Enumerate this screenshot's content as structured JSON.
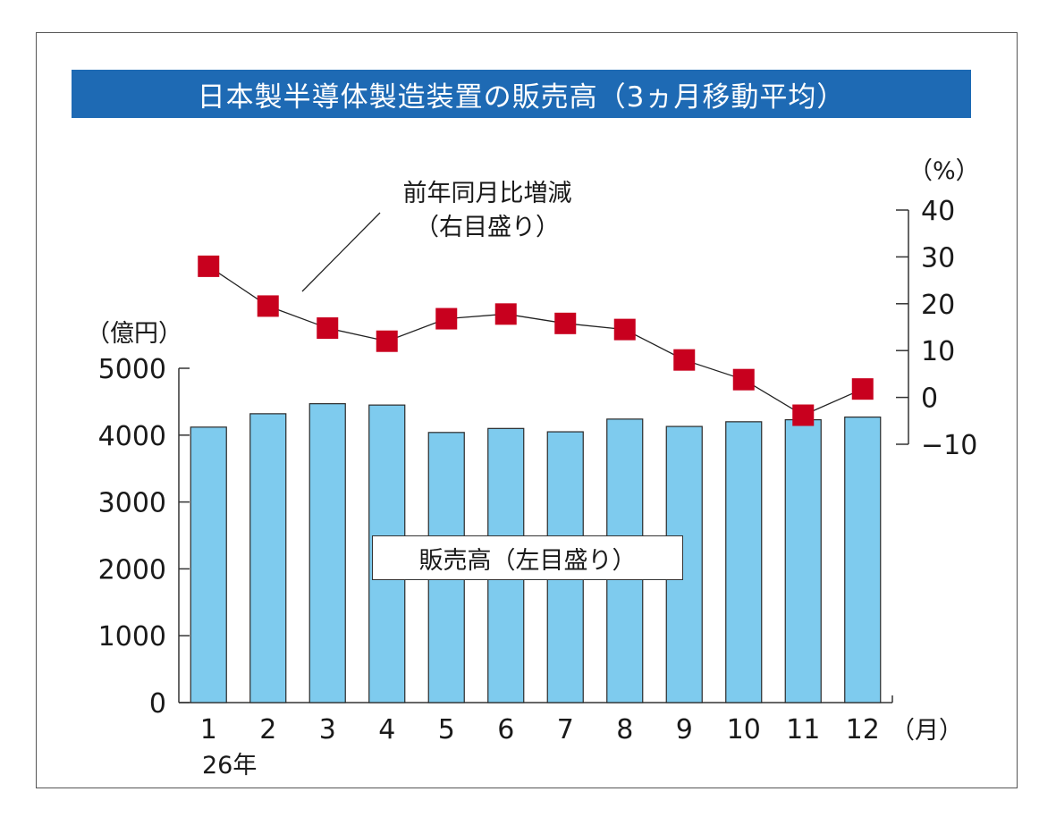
{
  "colors": {
    "title_bg": "#1e6ab4",
    "bar_fill": "#7ecbee",
    "marker_fill": "#c8001e",
    "axis": "#333333"
  },
  "chart_data": {
    "type": "bar+line",
    "title": "日本製半導体製造装置の販売高（3ヵ月移動平均）",
    "categories": [
      "1",
      "2",
      "3",
      "4",
      "5",
      "6",
      "7",
      "8",
      "9",
      "10",
      "11",
      "12"
    ],
    "x_unit_label": "（月）",
    "x_sub_label": "26年",
    "left_axis": {
      "unit_label": "（億円）",
      "ylim": [
        0,
        5000
      ],
      "ticks": [
        "0",
        "1000",
        "2000",
        "3000",
        "4000",
        "5000"
      ]
    },
    "right_axis": {
      "unit_label": "（%）",
      "ylim": [
        -10,
        40
      ],
      "ticks": [
        "−10",
        "0",
        "10",
        "20",
        "30",
        "40"
      ]
    },
    "series": [
      {
        "name": "販売高（左目盛り）",
        "type": "bar",
        "axis": "left",
        "values": [
          4120,
          4320,
          4470,
          4450,
          4040,
          4100,
          4050,
          4240,
          4130,
          4200,
          4230,
          4270
        ]
      },
      {
        "name_line1": "前年同月比増減",
        "name_line2": "（右目盛り）",
        "type": "line",
        "axis": "right",
        "values": [
          28,
          19.5,
          14.8,
          12,
          16.8,
          17.8,
          15.8,
          14.5,
          8,
          3.8,
          -3.8,
          1.8
        ]
      }
    ]
  }
}
